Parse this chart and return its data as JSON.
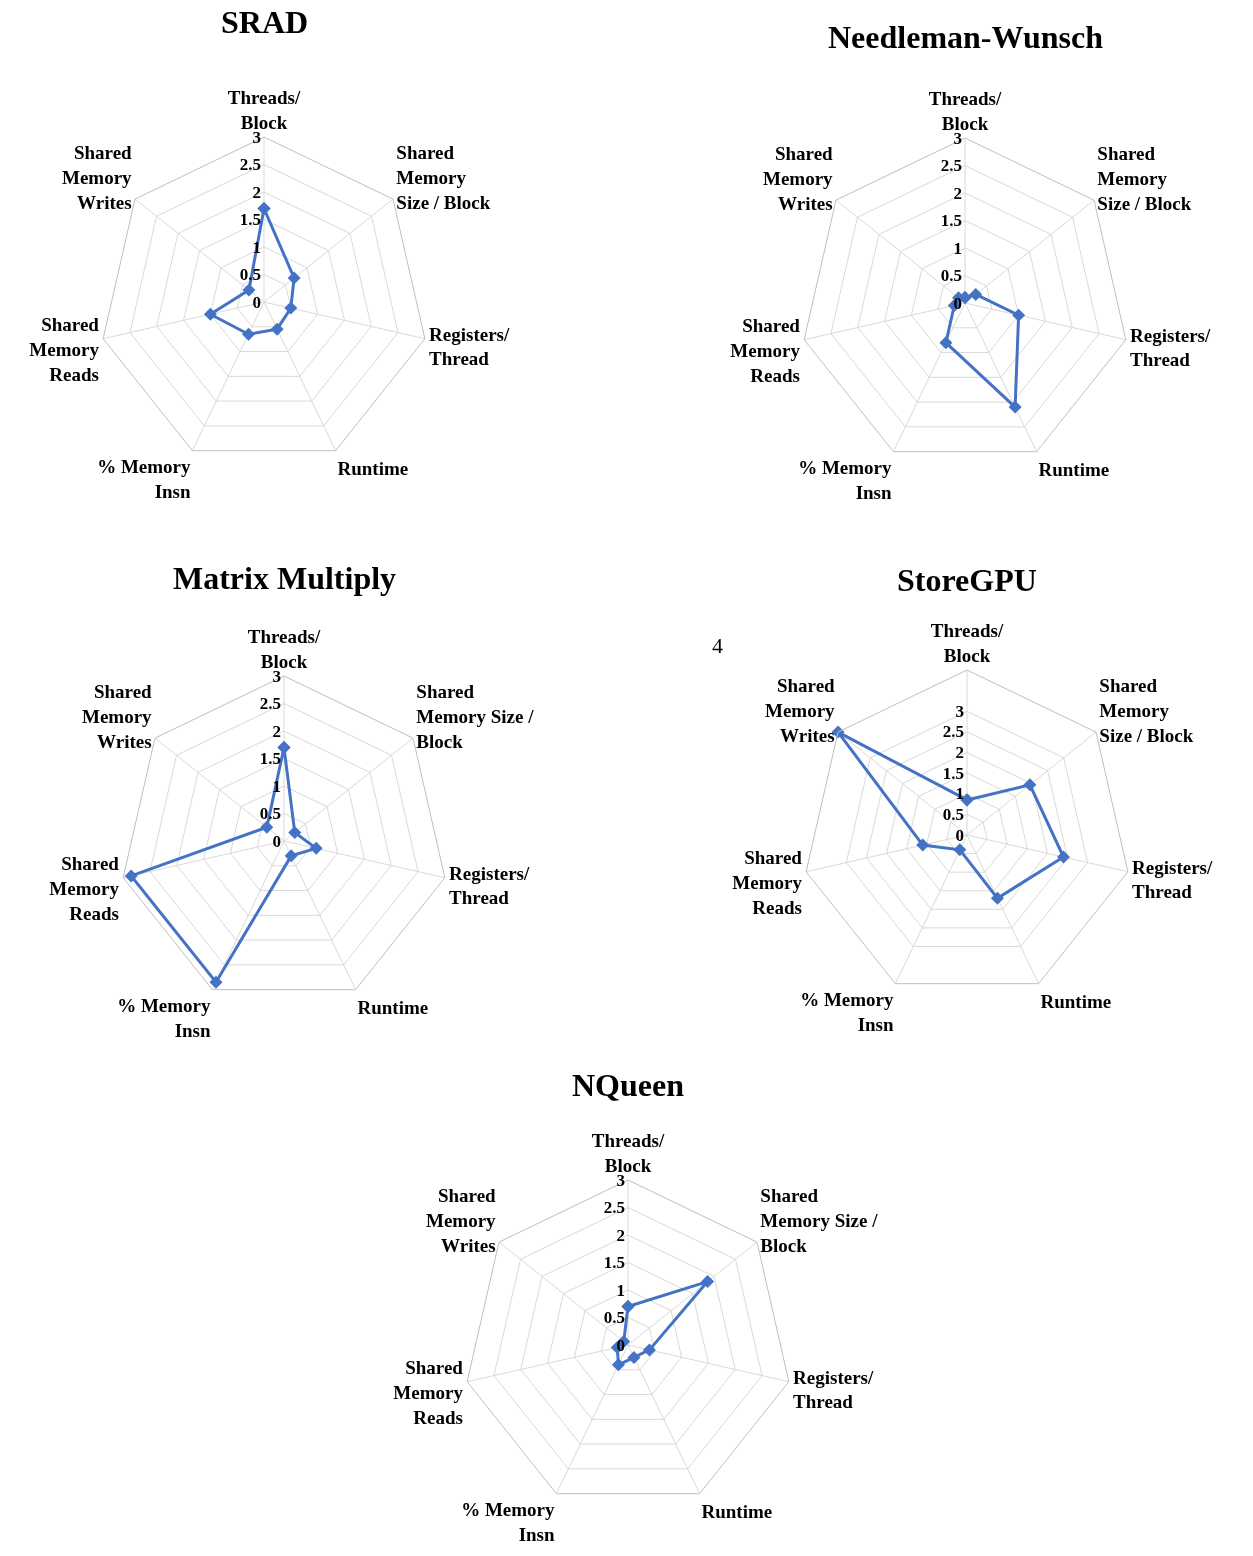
{
  "chart_data": [
    {
      "type": "radar",
      "title": "SRAD",
      "categories": [
        "Threads/\nBlock",
        "Shared\nMemory\nSize / Block",
        "Registers/\nThread",
        "Runtime",
        "% Memory\nInsn",
        "Shared\nMemory\nReads",
        "Shared\nMemory\nWrites"
      ],
      "series": [
        {
          "color": "#4472c4",
          "values": [
            1.7,
            0.7,
            0.5,
            0.55,
            0.65,
            1.0,
            0.35
          ]
        }
      ],
      "ylim": [
        0,
        3
      ],
      "yticks": [
        0,
        0.5,
        1,
        1.5,
        2,
        2.5,
        3
      ],
      "marker": "diamond",
      "grid": true
    },
    {
      "type": "radar",
      "title": "Needleman-Wunsch",
      "categories": [
        "Threads/\nBlock",
        "Shared\nMemory\nSize / Block",
        "Registers/\nThread",
        "Runtime",
        "% Memory\nInsn",
        "Shared\nMemory\nReads",
        "Shared\nMemory\nWrites"
      ],
      "series": [
        {
          "color": "#4472c4",
          "values": [
            0.1,
            0.25,
            1.0,
            2.1,
            0.8,
            0.2,
            0.15
          ]
        }
      ],
      "ylim": [
        0,
        3
      ],
      "yticks": [
        0,
        0.5,
        1,
        1.5,
        2,
        2.5,
        3
      ],
      "marker": "diamond",
      "grid": true
    },
    {
      "type": "radar",
      "title": "Matrix Multiply",
      "categories": [
        "Threads/\nBlock",
        "Shared\nMemory Size /\nBlock",
        "Registers/\nThread",
        "Runtime",
        "% Memory\nInsn",
        "Shared\nMemory\nReads",
        "Shared\nMemory\nWrites"
      ],
      "series": [
        {
          "color": "#4472c4",
          "values": [
            1.7,
            0.25,
            0.6,
            0.3,
            2.85,
            2.85,
            0.4
          ]
        }
      ],
      "ylim": [
        0,
        3
      ],
      "yticks": [
        0,
        0.5,
        1,
        1.5,
        2,
        2.5,
        3
      ],
      "marker": "diamond",
      "grid": true
    },
    {
      "type": "radar",
      "title": "StoreGPU",
      "categories": [
        "Threads/\nBlock",
        "Shared\nMemory\nSize / Block",
        "Registers/\nThread",
        "Runtime",
        "% Memory\nInsn",
        "Shared\nMemory\nReads",
        "Shared\nMemory\nWrites"
      ],
      "series": [
        {
          "color": "#4472c4",
          "values": [
            0.85,
            1.95,
            2.4,
            1.7,
            0.4,
            1.1,
            4
          ]
        }
      ],
      "ylim": [
        0,
        4
      ],
      "yticks": [
        0,
        0.5,
        1,
        1.5,
        2,
        2.5,
        3
      ],
      "marker": "diamond",
      "grid": true,
      "annotations": [
        "4"
      ]
    },
    {
      "type": "radar",
      "title": "NQueen",
      "categories": [
        "Threads/\nBlock",
        "Shared\nMemory Size /\nBlock",
        "Registers/\nThread",
        "Runtime",
        "% Memory\nInsn",
        "Shared\nMemory\nReads",
        "Shared\nMemory\nWrites"
      ],
      "series": [
        {
          "color": "#4472c4",
          "values": [
            0.7,
            1.85,
            0.4,
            0.25,
            0.4,
            0.2,
            0.1
          ]
        }
      ],
      "ylim": [
        0,
        3
      ],
      "yticks": [
        0,
        0.5,
        1,
        1.5,
        2,
        2.5,
        3
      ],
      "marker": "diamond",
      "grid": true
    }
  ]
}
